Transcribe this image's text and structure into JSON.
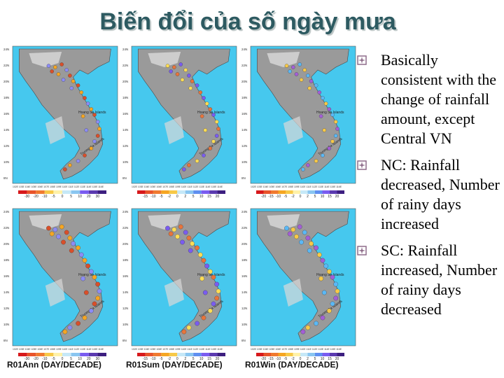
{
  "slide": {
    "title": "Biến đổi của số ngày mưa",
    "colors": {
      "title": "#2d5a61",
      "sea": "#46c8ee",
      "land": "#9a9a9a",
      "highland": "#d9d9d9",
      "bullet_icon": "#8e6c8a"
    }
  },
  "bullets": [
    {
      "text": "Basically consistent with the change of rainfall amount, except Central VN",
      "icon": "square-flower-bullet-icon"
    },
    {
      "text": "NC: Rainfall decreased, Number of rainy days increased",
      "icon": "square-flower-bullet-icon"
    },
    {
      "text": "SC: Rainfall increased, Number of rainy days decreased",
      "icon": "square-flower-bullet-icon"
    }
  ],
  "maps": {
    "island_label_1": "Hoang Sa Islands",
    "island_label_2": "Truong Sa Islands",
    "lat_labels": [
      "24N",
      "22N",
      "20N",
      "18N",
      "16N",
      "14N",
      "12N",
      "10N",
      "8N"
    ],
    "lon_labels": "102E 103E 104E 105E 106E 107E 108E 109E 110E 111E 112E 113E 114E 115E 116E",
    "top_row": [
      {
        "name": "rainfall-annual",
        "scale": [
          "-30",
          "-20",
          "-10",
          "-5",
          "0",
          "5",
          "10",
          "20",
          "30"
        ]
      },
      {
        "name": "rainfall-summer",
        "scale": [
          "-15",
          "-10",
          "-5",
          "-2",
          "0",
          "2",
          "5",
          "10",
          "15",
          "20"
        ]
      },
      {
        "name": "rainfall-winter",
        "scale": [
          "-20",
          "-15",
          "-10",
          "-5",
          "-2",
          "0",
          "2",
          "5",
          "10",
          "15",
          "20"
        ]
      }
    ],
    "bottom_row": [
      {
        "name": "rainy-days-annual",
        "caption": "R01Ann (DAY/DECADE)",
        "scale": [
          "-30",
          "-20",
          "-10",
          "-5",
          "0",
          "5",
          "10",
          "20",
          "30"
        ]
      },
      {
        "name": "rainy-days-summer",
        "caption": "R01Sum (DAY/DECADE)",
        "scale": [
          "-15",
          "-10",
          "-5",
          "-2",
          "0",
          "2",
          "5",
          "10",
          "15",
          "20"
        ]
      },
      {
        "name": "rainy-days-winter",
        "caption": "R01Win (DAY/DECADE)",
        "scale": [
          "-20",
          "-15",
          "-10",
          "-5",
          "-2",
          "0",
          "2",
          "5",
          "10",
          "15",
          "20"
        ]
      }
    ]
  }
}
